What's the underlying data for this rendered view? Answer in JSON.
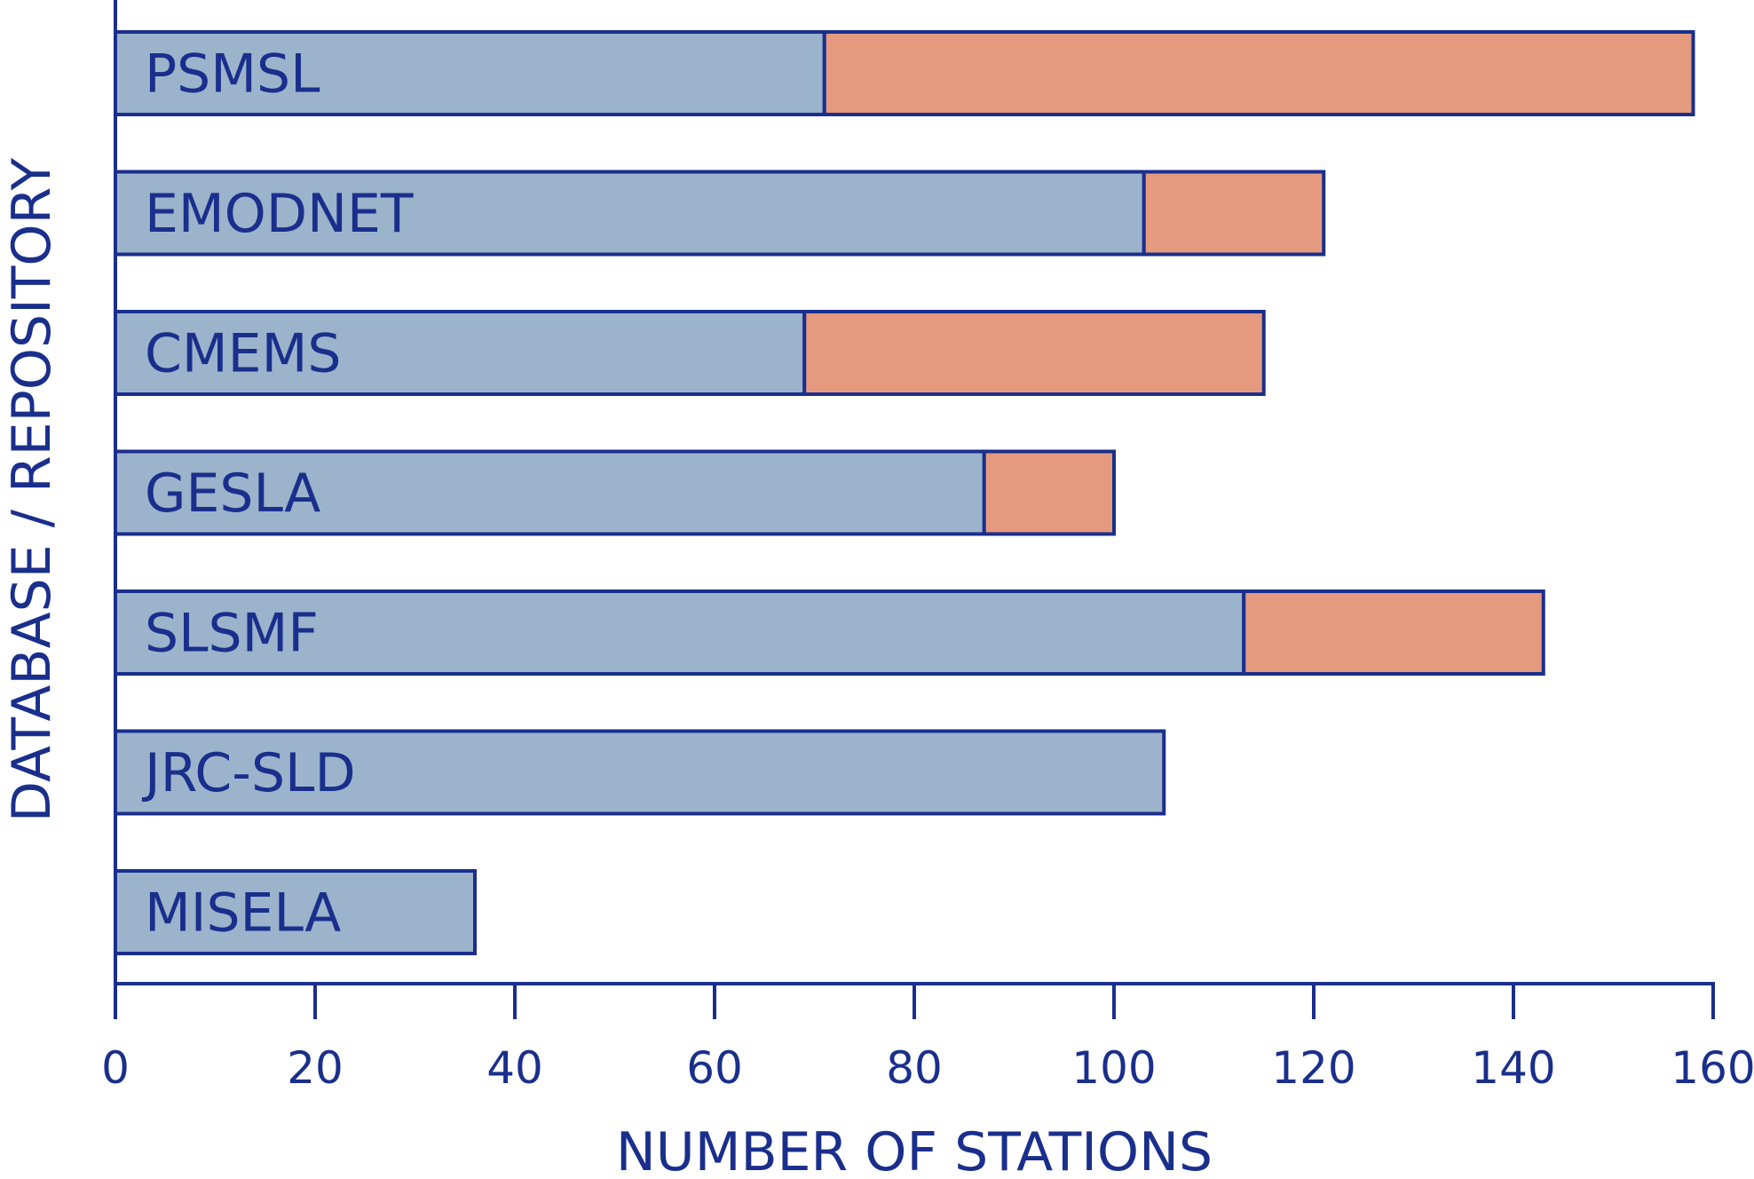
{
  "chart_data": {
    "type": "bar",
    "orientation": "horizontal",
    "stacked": true,
    "categories": [
      "PSMSL",
      "EMODNET",
      "CMEMS",
      "GESLA",
      "SLSMF",
      "JRC-SLD",
      "MISELA"
    ],
    "series": [
      {
        "values": [
          71,
          103,
          69,
          87,
          113,
          105,
          36
        ],
        "color": "#9cb3cc"
      },
      {
        "values": [
          87,
          18,
          46,
          13,
          30,
          0,
          0
        ],
        "color": "#e59a80"
      }
    ],
    "xlabel": "NUMBER OF STATIONS",
    "ylabel": "DATABASE / REPOSITORY",
    "xlim": [
      0,
      160
    ],
    "xticks": [
      0,
      20,
      40,
      60,
      80,
      100,
      120,
      140,
      160
    ],
    "grid": false,
    "legend": "none",
    "colors": {
      "axis": "#1a2f8c",
      "text": "#1a2f8c"
    }
  }
}
